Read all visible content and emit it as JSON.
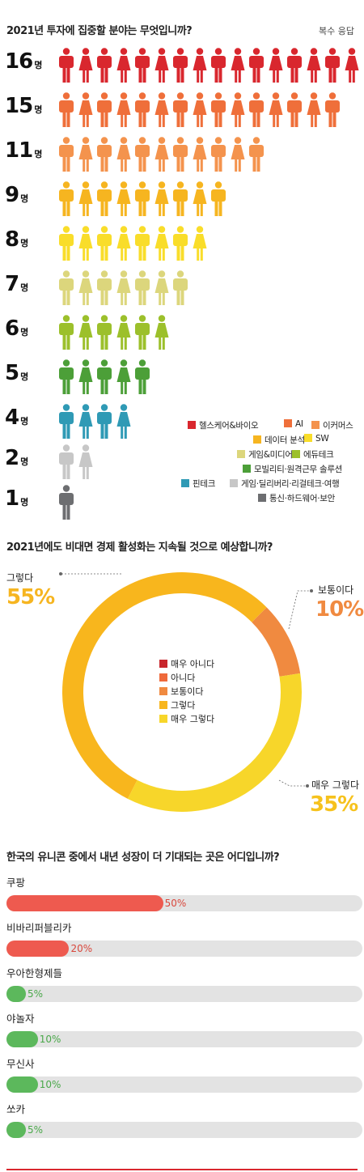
{
  "chart_data": [
    {
      "type": "pictograph",
      "title": "2021년 투자에 집중할 분야는 무엇입니까?",
      "note": "복수 응답",
      "unit": "명",
      "categories": [
        "헬스케어&바이오",
        "AI",
        "이커머스",
        "데이터 분석",
        "SW",
        "게임&미디어",
        "에듀테크",
        "모빌리티·원격근무 솔루션",
        "핀테크",
        "게임·딜리버리·리걸테크·여행",
        "통신·하드웨어·보안"
      ],
      "values": [
        16,
        15,
        11,
        9,
        8,
        7,
        6,
        5,
        4,
        2,
        1
      ],
      "colors": [
        "#d9272e",
        "#ef6f3a",
        "#f4934d",
        "#f6b520",
        "#f9dd2a",
        "#dcd67c",
        "#9cc02b",
        "#4c9f38",
        "#2f9ab5",
        "#c7c7c7",
        "#6d6e71"
      ]
    },
    {
      "type": "pie",
      "title": "2021년에도 비대면 경제 활성화는 지속될 것으로 예상합니까?",
      "categories": [
        "매우 아니다",
        "아니다",
        "보통이다",
        "그렇다",
        "매우 그렇다"
      ],
      "values": [
        0,
        0,
        10,
        55,
        35
      ],
      "colors": [
        "#c8262c",
        "#ef6a3b",
        "#f08a40",
        "#f8b61d",
        "#f7d62a"
      ],
      "callouts": [
        {
          "label": "그렇다",
          "pct": "55%",
          "color": "#f6b520"
        },
        {
          "label": "보통이다",
          "pct": "10%",
          "color": "#f08a40"
        },
        {
          "label": "매우 그렇다",
          "pct": "35%",
          "color": "#f6c21d"
        }
      ]
    },
    {
      "type": "bar",
      "orientation": "horizontal",
      "title": "한국의 유니콘 중에서 내년 성장이 더 기대되는 곳은 어디입니까?",
      "categories": [
        "쿠팡",
        "비바리퍼블리카",
        "우아한형제들",
        "야놀자",
        "무신사",
        "쏘카"
      ],
      "values": [
        50,
        20,
        5,
        10,
        10,
        5
      ],
      "value_labels": [
        "50%",
        "20%",
        "5%",
        "10%",
        "10%",
        "5%"
      ],
      "xlim": [
        0,
        100
      ],
      "colors": [
        "#ee5a4f",
        "#ee5a4f",
        "#5cb85c",
        "#5cb85c",
        "#5cb85c",
        "#5cb85c"
      ],
      "track_color": "#e3e3e3"
    }
  ]
}
